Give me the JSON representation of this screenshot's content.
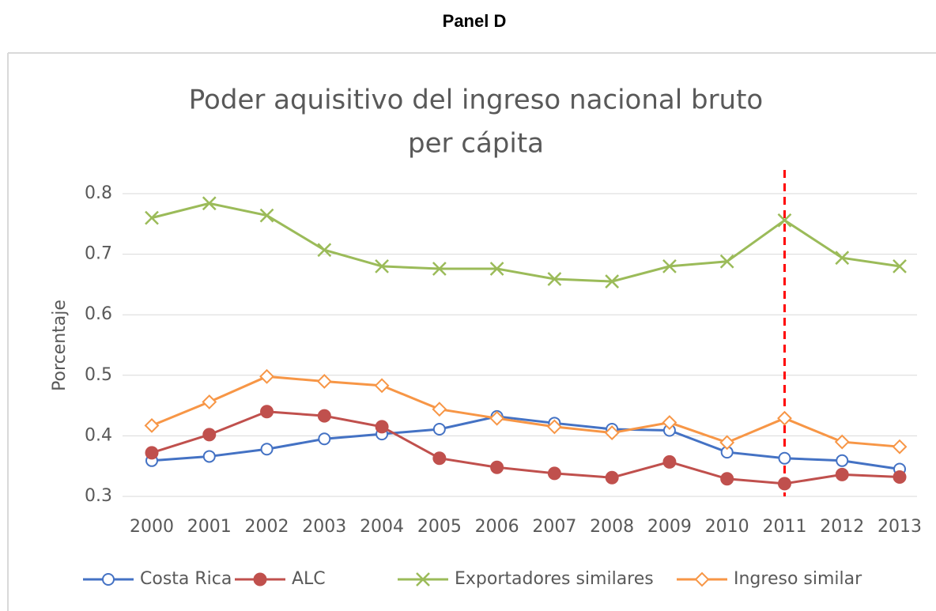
{
  "panel_label": "Panel D",
  "chart_data": {
    "type": "line",
    "title": [
      "Poder aquisitivo del ingreso nacional bruto",
      "per cápita"
    ],
    "y_label": "Porcentaje",
    "categories": [
      "2000",
      "2001",
      "2002",
      "2003",
      "2004",
      "2005",
      "2006",
      "2007",
      "2008",
      "2009",
      "2010",
      "2011",
      "2012",
      "2013"
    ],
    "ylim": [
      0.3,
      0.8
    ],
    "yticks": [
      0.3,
      0.4,
      0.5,
      0.6,
      0.7,
      0.8
    ],
    "grid": true,
    "legend": "bottom",
    "reference_line": {
      "category": "2011",
      "color": "#ff0000"
    },
    "series": [
      {
        "name": "Costa Rica",
        "color": "#4472c4",
        "marker": "circle-open",
        "values": [
          0.359,
          0.366,
          0.378,
          0.395,
          0.403,
          0.411,
          0.432,
          0.421,
          0.411,
          0.409,
          0.373,
          0.363,
          0.359,
          0.345
        ]
      },
      {
        "name": "ALC",
        "color": "#c0504d",
        "marker": "circle-filled",
        "values": [
          0.372,
          0.402,
          0.44,
          0.433,
          0.415,
          0.363,
          0.348,
          0.338,
          0.331,
          0.357,
          0.329,
          0.321,
          0.336,
          0.332
        ]
      },
      {
        "name": "Exportadores similares",
        "color": "#9bbb59",
        "marker": "x",
        "values": [
          0.76,
          0.784,
          0.764,
          0.707,
          0.68,
          0.676,
          0.676,
          0.659,
          0.655,
          0.68,
          0.688,
          0.756,
          0.694,
          0.68
        ]
      },
      {
        "name": "Ingreso similar",
        "color": "#f79646",
        "marker": "diamond-open",
        "values": [
          0.417,
          0.456,
          0.498,
          0.49,
          0.483,
          0.444,
          0.429,
          0.415,
          0.405,
          0.422,
          0.389,
          0.429,
          0.39,
          0.382
        ]
      }
    ]
  }
}
